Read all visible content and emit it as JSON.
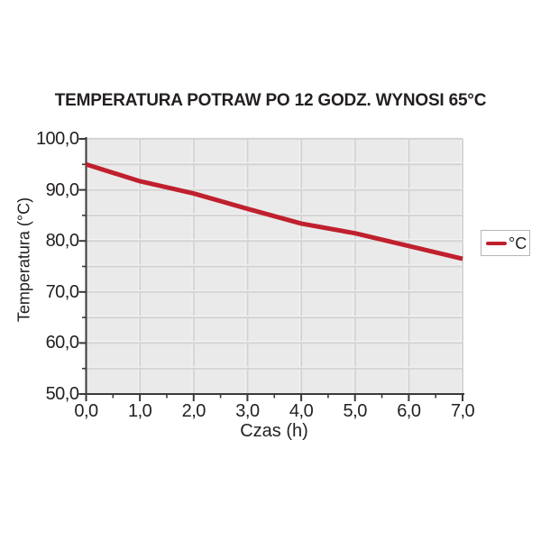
{
  "chart_data": {
    "type": "line",
    "title": "TEMPERATURA POTRAW PO 12 GODZ. WYNOSI 65°C",
    "xlabel": "Czas (h)",
    "ylabel": "Temperatura (°C)",
    "xlim": [
      0,
      7
    ],
    "ylim": [
      50,
      100
    ],
    "x_major_tick_step": 1,
    "x_minor_tick_step": 0.5,
    "y_major_tick_step": 10,
    "y_minor_tick_step": 5,
    "x_tick_labels": [
      "0,0",
      "1,0",
      "2,0",
      "3,0",
      "4,0",
      "5,0",
      "6,0",
      "7,0"
    ],
    "y_tick_labels": [
      "50,0",
      "60,0",
      "70,0",
      "80,0",
      "90,0",
      "100,0"
    ],
    "grid": {
      "visible": true,
      "x_step": 1,
      "y_step": 5
    },
    "legend": {
      "position": "center-right",
      "entries": [
        "°C"
      ]
    },
    "series": [
      {
        "name": "°C",
        "color": "#c0202e",
        "x": [
          0,
          1,
          2,
          3,
          4,
          5,
          6,
          7
        ],
        "y": [
          95.0,
          91.7,
          89.3,
          86.3,
          83.4,
          81.5,
          79.0,
          76.5
        ]
      }
    ],
    "colors": {
      "plot_background": "#eaeaea",
      "grid_line": "#d4d4d4",
      "grid_highlight": "#f7f7f7",
      "axis_line": "#3a3a3a",
      "text": "#231f20",
      "legend_border": "#b6b6b6"
    }
  }
}
